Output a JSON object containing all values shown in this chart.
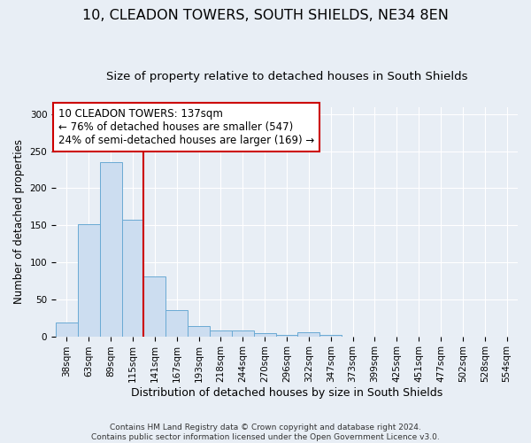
{
  "title": "10, CLEADON TOWERS, SOUTH SHIELDS, NE34 8EN",
  "subtitle": "Size of property relative to detached houses in South Shields",
  "xlabel": "Distribution of detached houses by size in South Shields",
  "ylabel": "Number of detached properties",
  "footer_line1": "Contains HM Land Registry data © Crown copyright and database right 2024.",
  "footer_line2": "Contains public sector information licensed under the Open Government Licence v3.0.",
  "bin_labels": [
    "38sqm",
    "63sqm",
    "89sqm",
    "115sqm",
    "141sqm",
    "167sqm",
    "193sqm",
    "218sqm",
    "244sqm",
    "270sqm",
    "296sqm",
    "322sqm",
    "347sqm",
    "373sqm",
    "399sqm",
    "425sqm",
    "451sqm",
    "477sqm",
    "502sqm",
    "528sqm",
    "554sqm"
  ],
  "bar_values": [
    19,
    151,
    235,
    157,
    81,
    36,
    14,
    8,
    8,
    4,
    2,
    5,
    2,
    0,
    0,
    0,
    0,
    0,
    0,
    0,
    0
  ],
  "bar_color": "#ccddf0",
  "bar_edge_color": "#6aaad4",
  "vline_x_index": 3.5,
  "vline_color": "#cc0000",
  "annotation_line1": "10 CLEADON TOWERS: 137sqm",
  "annotation_line2": "← 76% of detached houses are smaller (547)",
  "annotation_line3": "24% of semi-detached houses are larger (169) →",
  "annotation_box_color": "#ffffff",
  "annotation_box_edge": "#cc0000",
  "ylim": [
    0,
    310
  ],
  "yticks": [
    0,
    50,
    100,
    150,
    200,
    250,
    300
  ],
  "bg_color": "#e8eef5",
  "plot_bg_color": "#e8eef5",
  "title_fontsize": 11.5,
  "subtitle_fontsize": 9.5,
  "xlabel_fontsize": 9,
  "ylabel_fontsize": 8.5,
  "tick_fontsize": 7.5,
  "annotation_fontsize": 8.5,
  "footer_fontsize": 6.5
}
